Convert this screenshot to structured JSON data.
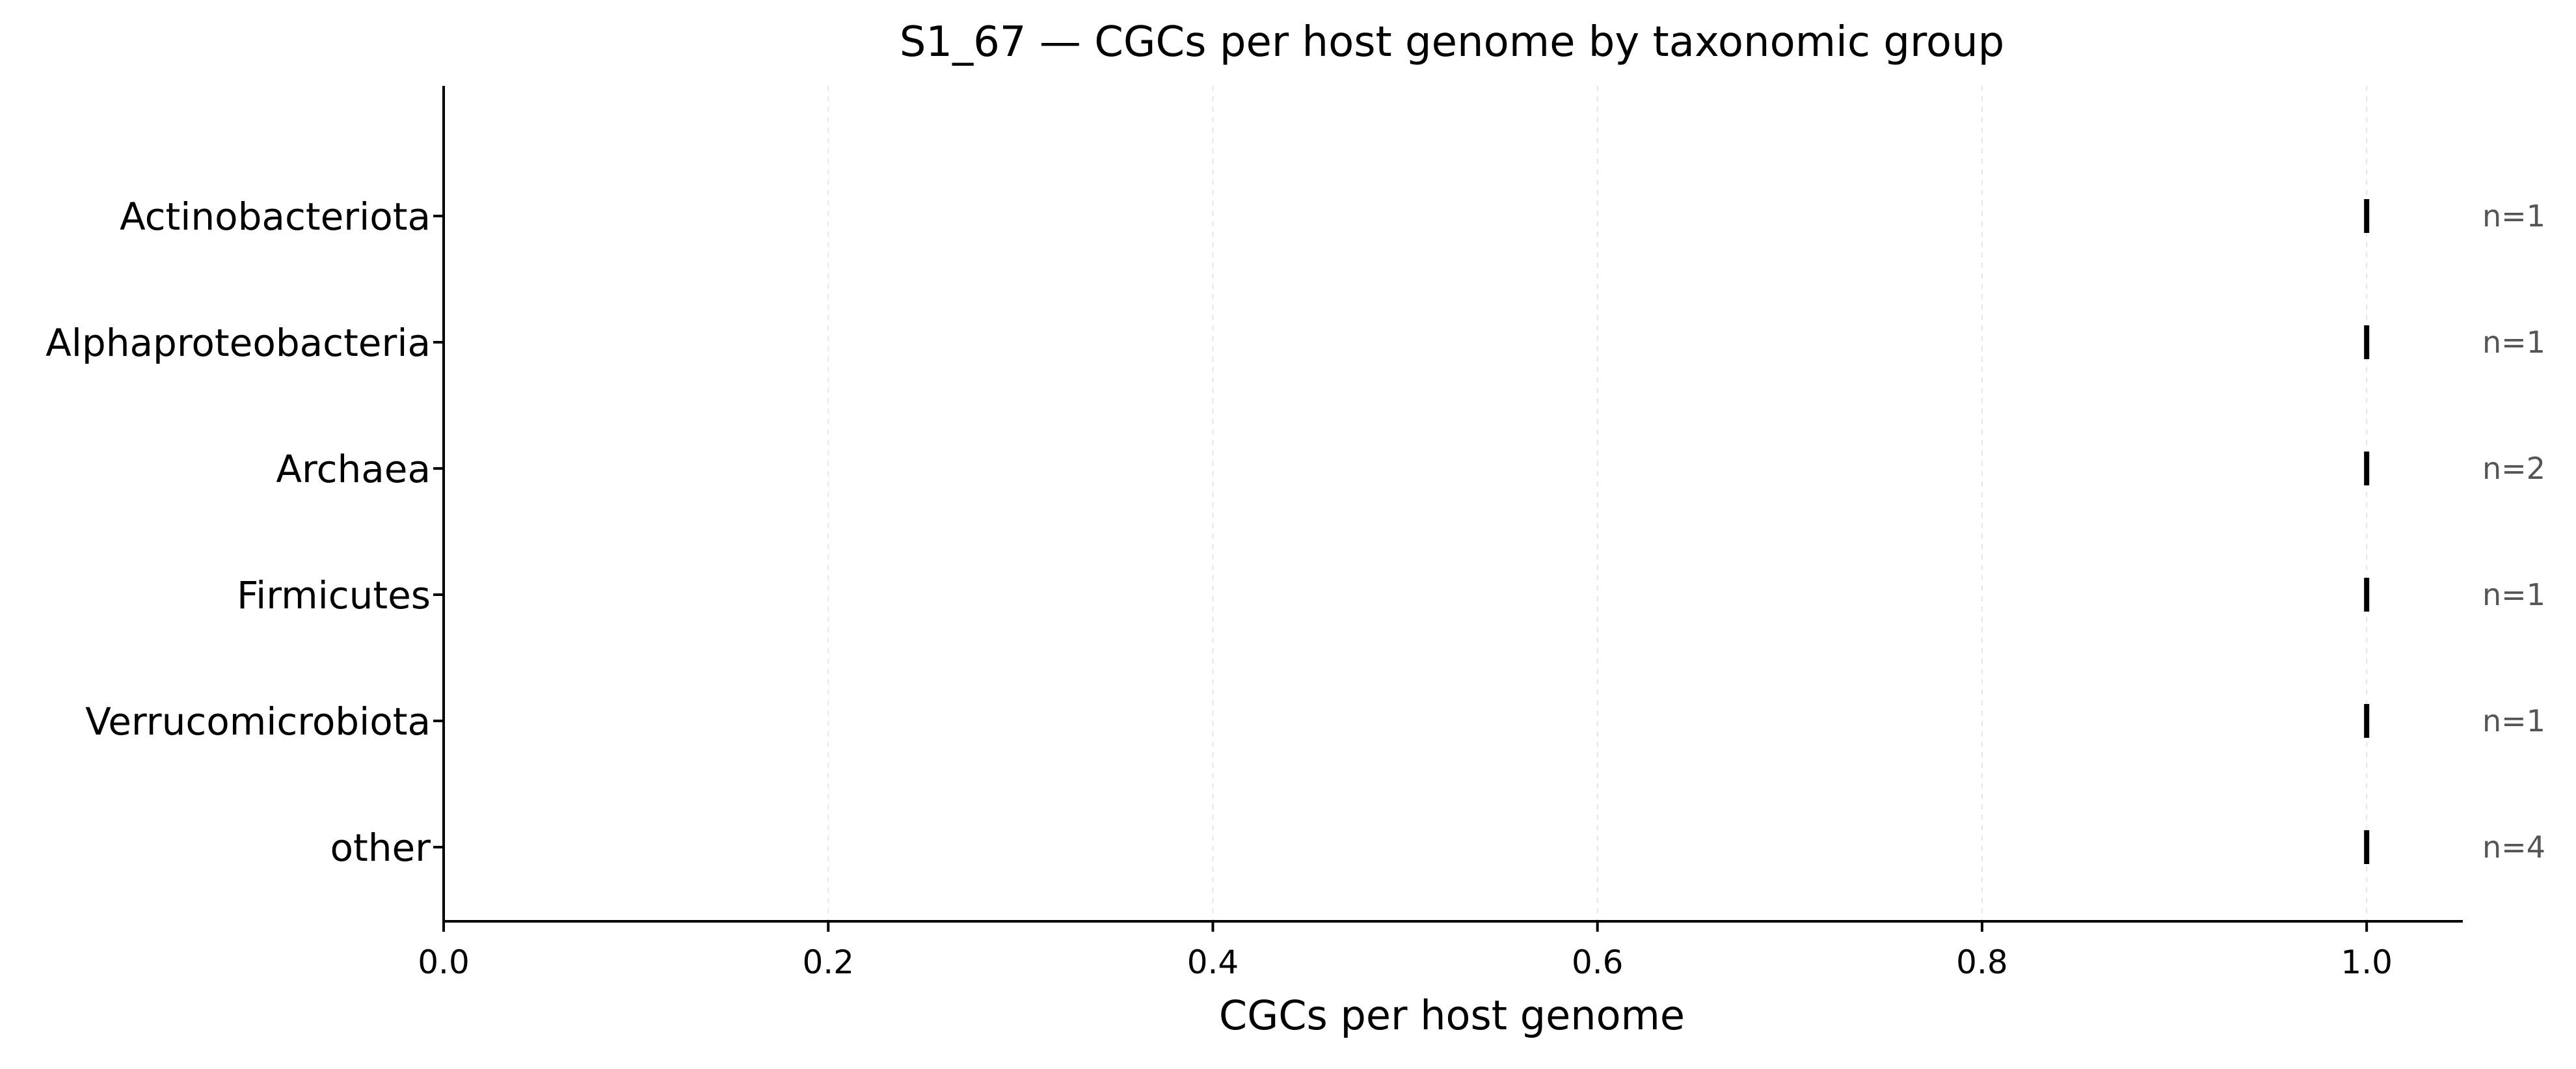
{
  "chart_data": {
    "type": "scatter",
    "title": "S1_67 — CGCs per host genome by taxonomic group",
    "xlabel": "CGCs per host genome",
    "ylabel": "",
    "xlim": [
      0.0,
      1.05
    ],
    "x_ticks": [
      "0.0",
      "0.2",
      "0.4",
      "0.6",
      "0.8",
      "1.0"
    ],
    "x_tick_values": [
      0.0,
      0.2,
      0.4,
      0.6,
      0.8,
      1.0
    ],
    "grid": "vertical dashed",
    "categories": [
      "Actinobacteriota",
      "Alphaproteobacteria",
      "Archaea",
      "Firmicutes",
      "Verrucomicrobiota",
      "other"
    ],
    "values": [
      1.0,
      1.0,
      1.0,
      1.0,
      1.0,
      1.0
    ],
    "counts": [
      "n=1",
      "n=1",
      "n=2",
      "n=1",
      "n=1",
      "n=4"
    ],
    "colors": {
      "marker": "#000000",
      "axis": "#000000",
      "count_label": "#555555",
      "grid": "#e6e6e6"
    }
  }
}
